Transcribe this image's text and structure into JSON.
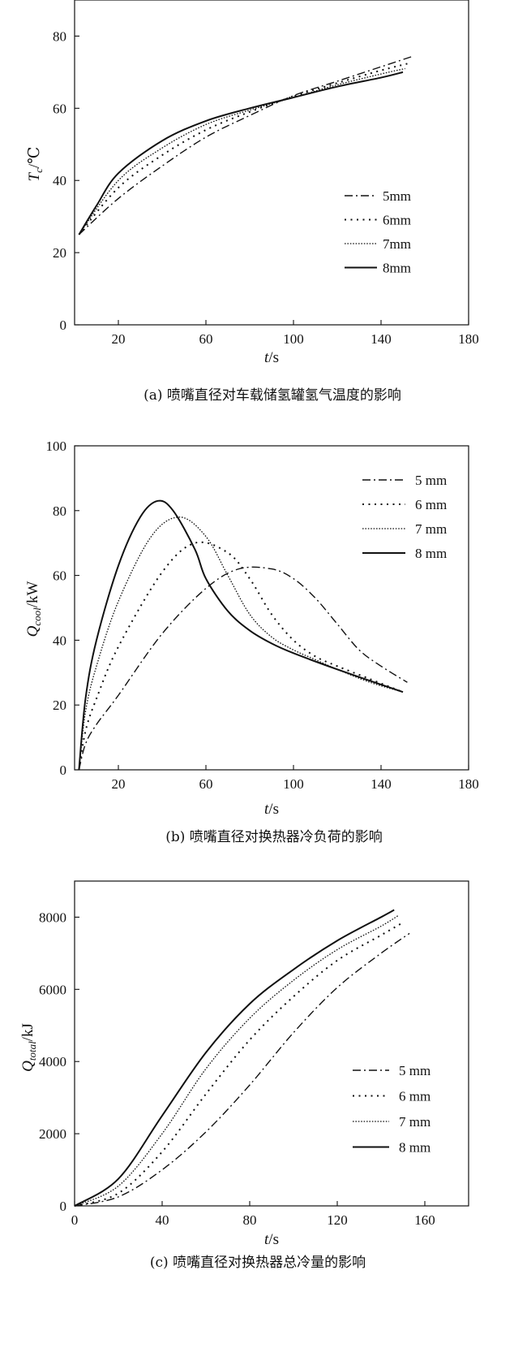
{
  "figure": {
    "panels": [
      {
        "caption": "(a) 喷嘴直径对车载储氢罐氢气温度的影响",
        "xlabel_italic": "t",
        "xlabel_unit": "/s",
        "ylabel_main": "T",
        "ylabel_sub": "c",
        "ylabel_unit": "/℃"
      },
      {
        "caption": "(b) 喷嘴直径对换热器冷负荷的影响",
        "xlabel_italic": "t",
        "xlabel_unit": "/s",
        "ylabel_main": "Q",
        "ylabel_sub": "cool",
        "ylabel_unit": "/kW"
      },
      {
        "caption": "(c) 喷嘴直径对换热器总冷量的影响",
        "xlabel_italic": "t",
        "xlabel_unit": "/s",
        "ylabel_main": "Q",
        "ylabel_sub": "total",
        "ylabel_unit": "/kJ"
      }
    ]
  },
  "chart_data": [
    {
      "type": "line",
      "title": "",
      "xlabel": "t/s",
      "ylabel": "Tc/℃",
      "xlim": [
        0,
        180
      ],
      "ylim": [
        0,
        90
      ],
      "xticks": [
        20,
        60,
        100,
        140,
        180
      ],
      "yticks": [
        0,
        20,
        40,
        60,
        80
      ],
      "grid": false,
      "legend": "right",
      "series": [
        {
          "name": "5mm",
          "dash": "dashdot",
          "x": [
            2,
            20,
            40,
            60,
            80,
            100,
            120,
            140,
            155
          ],
          "y": [
            25,
            35,
            44,
            52,
            58,
            63.5,
            67.5,
            71.5,
            74.5
          ]
        },
        {
          "name": "6mm",
          "dash": "dotted",
          "x": [
            2,
            20,
            40,
            60,
            80,
            100,
            120,
            140,
            153
          ],
          "y": [
            25,
            38,
            47,
            54,
            59,
            63.3,
            67,
            70.5,
            72.5
          ]
        },
        {
          "name": "7mm",
          "dash": "dense",
          "x": [
            2,
            20,
            40,
            60,
            80,
            100,
            120,
            140,
            151
          ],
          "y": [
            25,
            40,
            49,
            55.5,
            59.5,
            63,
            66.5,
            69.5,
            71
          ]
        },
        {
          "name": "8mm",
          "dash": "solid",
          "x": [
            2,
            10,
            20,
            40,
            60,
            80,
            100,
            120,
            140,
            150
          ],
          "y": [
            25,
            33,
            42,
            51,
            56.5,
            60,
            63,
            66,
            68.5,
            70
          ]
        }
      ]
    },
    {
      "type": "line",
      "title": "",
      "xlabel": "t/s",
      "ylabel": "Qcool/kW",
      "xlim": [
        0,
        180
      ],
      "ylim": [
        0,
        100
      ],
      "xticks": [
        20,
        60,
        100,
        140,
        180
      ],
      "yticks": [
        0,
        20,
        40,
        60,
        80,
        100
      ],
      "grid": false,
      "legend": "top-right",
      "series": [
        {
          "name": "5 mm",
          "dash": "dashdot",
          "x": [
            2,
            5,
            10,
            20,
            40,
            60,
            75,
            90,
            100,
            110,
            120,
            130,
            140,
            152
          ],
          "y": [
            0,
            8,
            14,
            23,
            42,
            56,
            62,
            62,
            59,
            53,
            45,
            37,
            32,
            27
          ]
        },
        {
          "name": "6 mm",
          "dash": "dotted",
          "x": [
            2,
            5,
            10,
            20,
            40,
            55,
            70,
            80,
            90,
            100,
            110,
            120,
            135,
            150
          ],
          "y": [
            0,
            12,
            22,
            38,
            61,
            70,
            67,
            59,
            48,
            40,
            35,
            32,
            28,
            24
          ]
        },
        {
          "name": "7 mm",
          "dash": "dense",
          "x": [
            2,
            5,
            10,
            20,
            35,
            48,
            60,
            70,
            80,
            90,
            100,
            110,
            120,
            135,
            150
          ],
          "y": [
            0,
            18,
            32,
            52,
            72,
            78,
            72,
            60,
            48,
            41,
            37,
            34,
            31,
            27,
            24
          ]
        },
        {
          "name": "8 mm",
          "dash": "solid",
          "x": [
            2,
            5,
            10,
            20,
            30,
            38,
            45,
            55,
            60,
            70,
            80,
            90,
            100,
            120,
            150
          ],
          "y": [
            0,
            22,
            40,
            63,
            78,
            83,
            80,
            68,
            59,
            49,
            43,
            39,
            36,
            31,
            24
          ]
        }
      ]
    },
    {
      "type": "line",
      "title": "",
      "xlabel": "t/s",
      "ylabel": "Qtotal/kJ",
      "xlim": [
        0,
        180
      ],
      "ylim": [
        0,
        9000
      ],
      "xticks": [
        0,
        40,
        80,
        120,
        160
      ],
      "yticks": [
        0,
        2000,
        4000,
        6000,
        8000
      ],
      "grid": false,
      "legend": "right",
      "series": [
        {
          "name": "5 mm",
          "dash": "dashdot",
          "x": [
            0,
            20,
            40,
            60,
            80,
            100,
            120,
            140,
            153
          ],
          "y": [
            0,
            250,
            1000,
            2050,
            3350,
            4800,
            6050,
            7000,
            7550
          ]
        },
        {
          "name": "6 mm",
          "dash": "dotted",
          "x": [
            0,
            20,
            40,
            60,
            80,
            100,
            120,
            140,
            150
          ],
          "y": [
            0,
            350,
            1500,
            3100,
            4600,
            5800,
            6800,
            7500,
            7850
          ]
        },
        {
          "name": "7 mm",
          "dash": "dense",
          "x": [
            0,
            20,
            40,
            60,
            80,
            100,
            120,
            140,
            148
          ],
          "y": [
            0,
            550,
            2000,
            3800,
            5200,
            6250,
            7100,
            7750,
            8050
          ]
        },
        {
          "name": "8 mm",
          "dash": "solid",
          "x": [
            0,
            20,
            40,
            60,
            80,
            100,
            120,
            140,
            146
          ],
          "y": [
            0,
            750,
            2500,
            4250,
            5600,
            6550,
            7350,
            8000,
            8200
          ]
        }
      ]
    }
  ]
}
